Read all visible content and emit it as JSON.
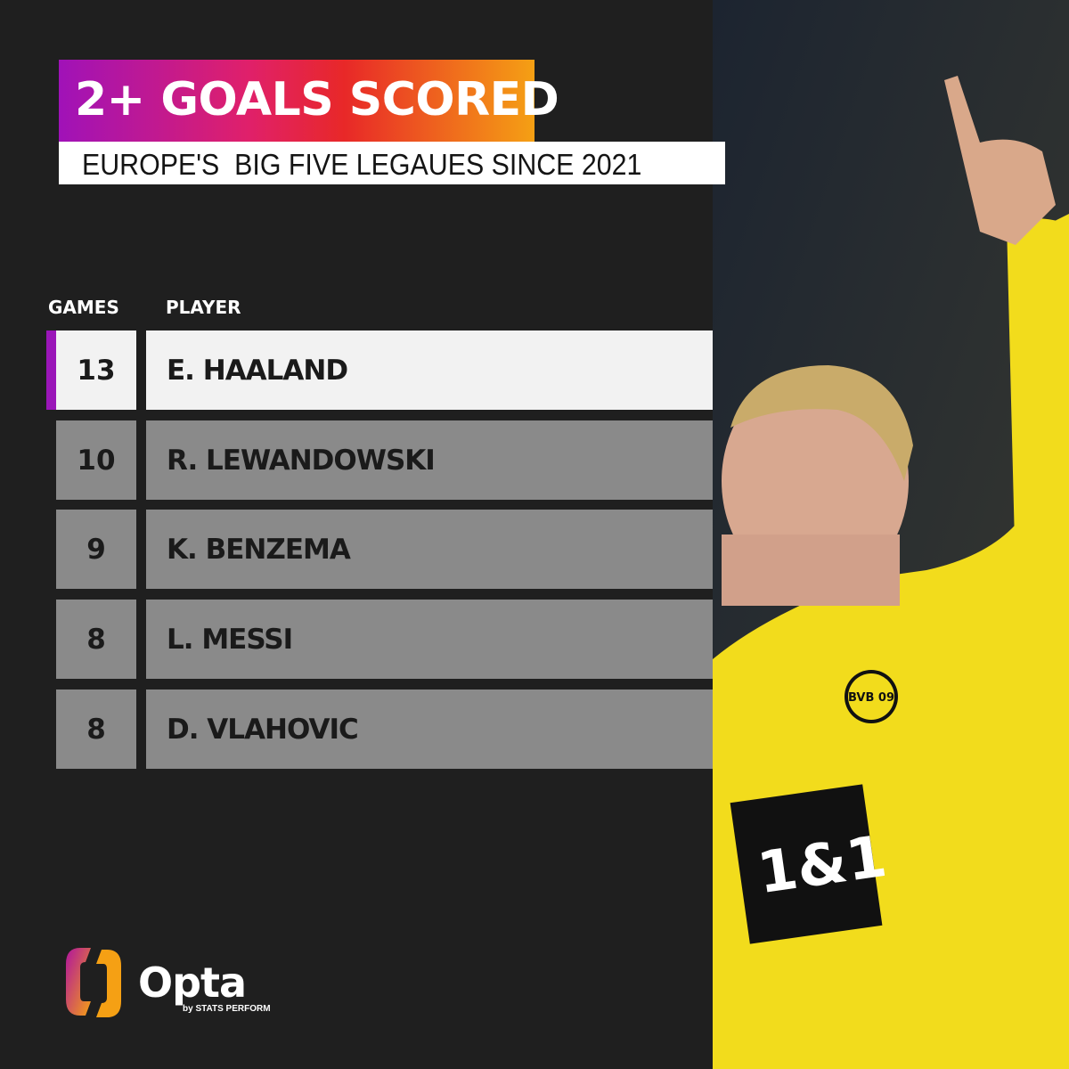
{
  "title": "2+ GOALS SCORED",
  "subtitle": "EUROPE'S  BIG FIVE LEGAUES SINCE 2021",
  "headers": {
    "games": "GAMES",
    "player": "PLAYER"
  },
  "rows": [
    {
      "games": "13",
      "player": "E. HAALAND",
      "highlight": true
    },
    {
      "games": "10",
      "player": "R. LEWANDOWSKI"
    },
    {
      "games": "9",
      "player": "K. BENZEMA"
    },
    {
      "games": "8",
      "player": "L. MESSI"
    },
    {
      "games": "8",
      "player": "D. VLAHOVIC"
    }
  ],
  "brand": {
    "name": "Opta",
    "tagline": "by STATS PERFORM"
  },
  "photo": {
    "sponsor": "1&1",
    "badge": "BVB 09"
  },
  "colors": {
    "gradient": [
      "#a012b8",
      "#e82828",
      "#f5a014"
    ],
    "accent": "#9a16b8",
    "row": "#8a8a8a",
    "highlight_row": "#f2f2f2",
    "shirt": "#f5e11a"
  }
}
